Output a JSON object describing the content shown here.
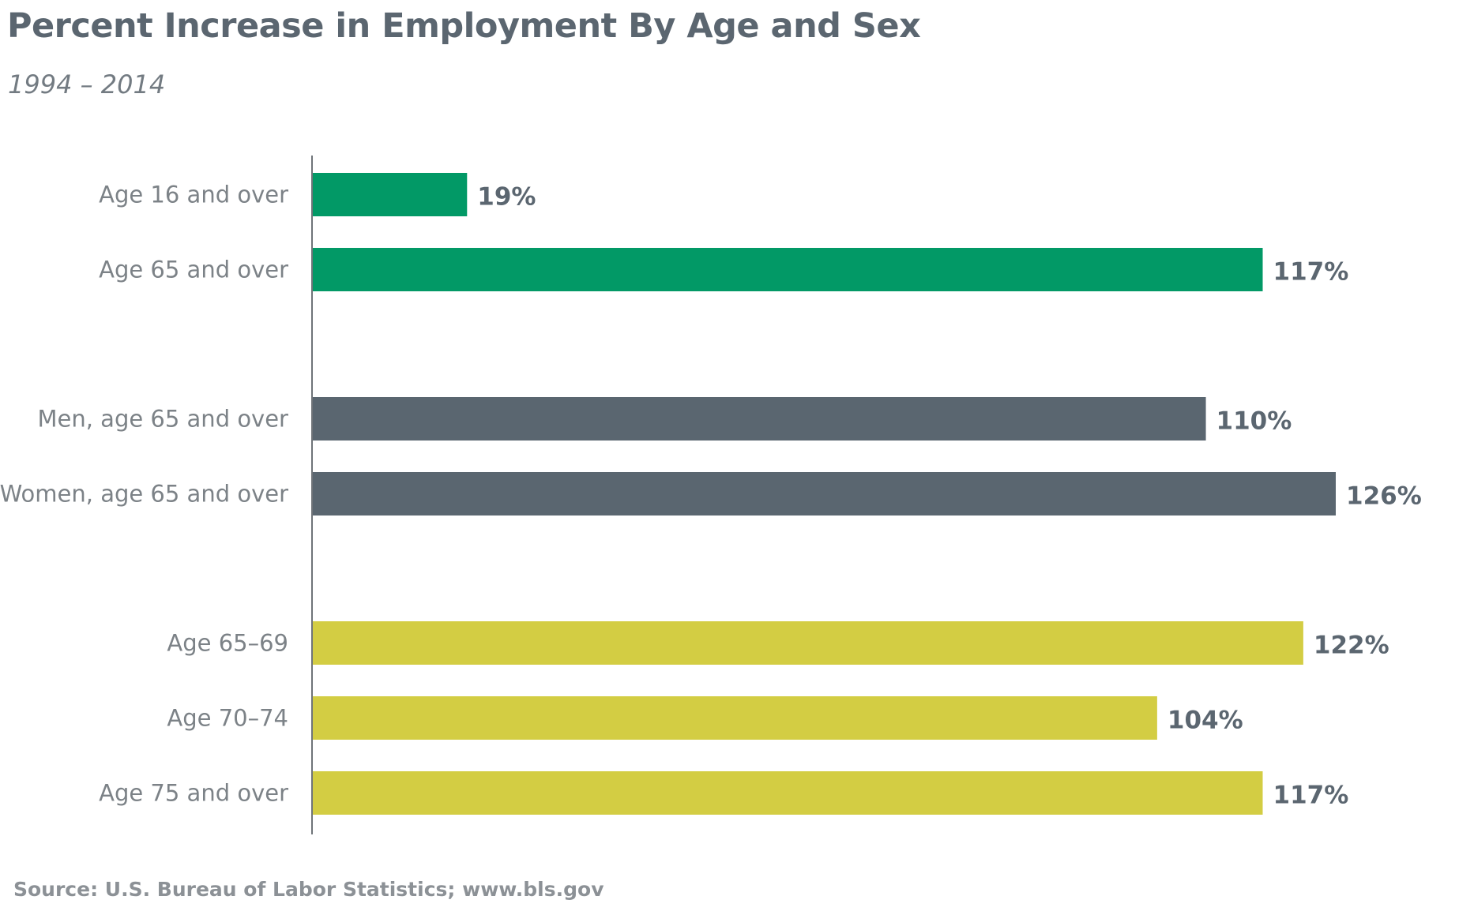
{
  "chart_data": {
    "type": "bar",
    "orientation": "horizontal",
    "title": "Percent Increase in Employment By Age and Sex",
    "subtitle": "1994 – 2014",
    "source": "Source: U.S. Bureau of Labor Statistics; www.bls.gov",
    "categories": [
      "Age 16 and over",
      "Age 65 and over",
      "Men, age 65 and over",
      "Women, age 65 and over",
      "Age 65–69",
      "Age 70–74",
      "Age 75 and over"
    ],
    "values": [
      19,
      117,
      110,
      126,
      122,
      104,
      117
    ],
    "value_labels": [
      "19%",
      "117%",
      "110%",
      "126%",
      "122%",
      "104%",
      "117%"
    ],
    "groups": [
      {
        "items": [
          0,
          1
        ],
        "color": "#029966"
      },
      {
        "items": [
          2,
          3
        ],
        "color": "#5a6670"
      },
      {
        "items": [
          4,
          5,
          6
        ],
        "color": "#d3cd43"
      }
    ],
    "xlim": [
      0,
      126
    ],
    "grid": false,
    "legend": "none"
  }
}
